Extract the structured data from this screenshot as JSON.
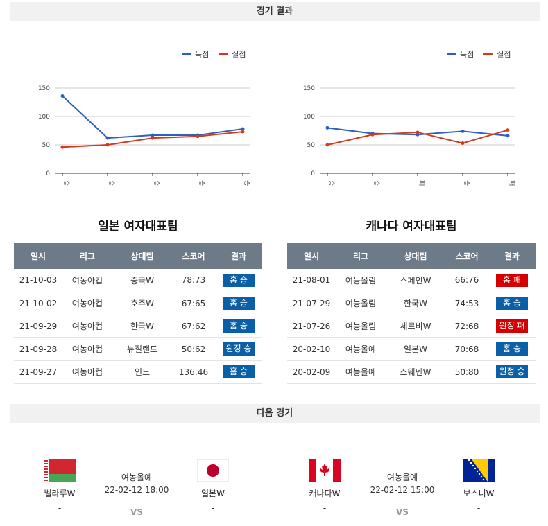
{
  "sections": {
    "results_title": "경기 결과",
    "next_title": "다음 경기"
  },
  "legend": {
    "scored": "득점",
    "conceded": "실점"
  },
  "colors": {
    "scored": "#2b5fc1",
    "conceded": "#d43a1a",
    "win": "#0a5fa6",
    "loss": "#d40000",
    "header": "#6d7b89"
  },
  "chart_data": [
    {
      "type": "line",
      "categories": [
        "승",
        "승",
        "승",
        "승",
        "승"
      ],
      "series": [
        {
          "name": "득점",
          "values": [
            136,
            62,
            67,
            67,
            78
          ]
        },
        {
          "name": "실점",
          "values": [
            46,
            50,
            62,
            65,
            73
          ]
        }
      ],
      "ylim": [
        0,
        150
      ],
      "yticks": [
        0,
        50,
        100,
        150
      ],
      "grid": true,
      "legend_position": "top-right"
    },
    {
      "type": "line",
      "categories": [
        "승",
        "승",
        "패",
        "승",
        "패"
      ],
      "series": [
        {
          "name": "득점",
          "values": [
            80,
            70,
            68,
            74,
            66
          ]
        },
        {
          "name": "실점",
          "values": [
            50,
            68,
            72,
            53,
            76
          ]
        }
      ],
      "ylim": [
        0,
        150
      ],
      "yticks": [
        0,
        50,
        100,
        150
      ],
      "grid": true,
      "legend_position": "top-right"
    }
  ],
  "tables": {
    "headers": [
      "일시",
      "리그",
      "상대팀",
      "스코어",
      "결과"
    ],
    "japan": {
      "title": "일본 여자대표팀",
      "rows": [
        {
          "date": "21-10-03",
          "league": "여농아컵",
          "opponent": "중국W",
          "score": "78:73",
          "result": "홈 승",
          "kind": "win"
        },
        {
          "date": "21-10-02",
          "league": "여농아컵",
          "opponent": "호주W",
          "score": "67:65",
          "result": "홈 승",
          "kind": "win"
        },
        {
          "date": "21-09-29",
          "league": "여농아컵",
          "opponent": "한국W",
          "score": "67:62",
          "result": "홈 승",
          "kind": "win"
        },
        {
          "date": "21-09-28",
          "league": "여농아컵",
          "opponent": "뉴질랜드",
          "score": "50:62",
          "result": "원정 승",
          "kind": "win"
        },
        {
          "date": "21-09-27",
          "league": "여농아컵",
          "opponent": "인도",
          "score": "136:46",
          "result": "홈 승",
          "kind": "win"
        }
      ]
    },
    "canada": {
      "title": "캐나다 여자대표팀",
      "rows": [
        {
          "date": "21-08-01",
          "league": "여농올림",
          "opponent": "스페인W",
          "score": "66:76",
          "result": "홈 패",
          "kind": "loss"
        },
        {
          "date": "21-07-29",
          "league": "여농올림",
          "opponent": "한국W",
          "score": "74:53",
          "result": "홈 승",
          "kind": "win"
        },
        {
          "date": "21-07-26",
          "league": "여농올림",
          "opponent": "세르비W",
          "score": "72:68",
          "result": "원정 패",
          "kind": "loss"
        },
        {
          "date": "20-02-10",
          "league": "여농올예",
          "opponent": "일본W",
          "score": "70:68",
          "result": "홈 승",
          "kind": "win"
        },
        {
          "date": "20-02-09",
          "league": "여농올예",
          "opponent": "스웨덴W",
          "score": "50:80",
          "result": "원정 승",
          "kind": "win"
        }
      ]
    }
  },
  "next_matches": [
    {
      "home": "벨라루W",
      "home_sub": "-",
      "away": "일본W",
      "away_sub": "-",
      "league": "여농올예",
      "datetime": "22-02-12 18:00",
      "vs": "VS"
    },
    {
      "home": "캐나다W",
      "home_sub": "-",
      "away": "보스니W",
      "away_sub": "-",
      "league": "여농올예",
      "datetime": "22-02-12 15:00",
      "vs": "VS"
    }
  ]
}
